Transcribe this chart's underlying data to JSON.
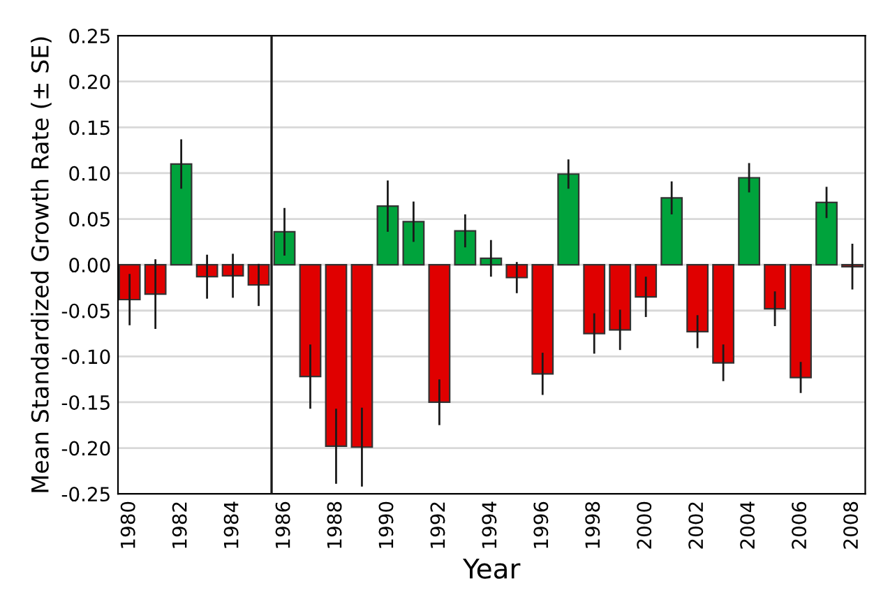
{
  "chart_data": {
    "type": "bar",
    "xlabel": "Year",
    "ylabel": "Mean Standardized Growth Rate (± SE)",
    "x": [
      1980,
      1981,
      1982,
      1983,
      1984,
      1985,
      1986,
      1987,
      1988,
      1989,
      1990,
      1991,
      1992,
      1993,
      1994,
      1995,
      1996,
      1997,
      1998,
      1999,
      2000,
      2001,
      2002,
      2003,
      2004,
      2005,
      2006,
      2007,
      2008
    ],
    "values": [
      -0.038,
      -0.032,
      0.11,
      -0.013,
      -0.012,
      -0.022,
      0.036,
      -0.122,
      -0.198,
      -0.199,
      0.064,
      0.047,
      -0.15,
      0.037,
      0.007,
      -0.014,
      -0.119,
      0.099,
      -0.075,
      -0.071,
      -0.035,
      0.073,
      -0.073,
      -0.107,
      0.095,
      -0.048,
      -0.123,
      0.068,
      -0.002
    ],
    "errors": [
      0.028,
      0.038,
      0.027,
      0.024,
      0.024,
      0.023,
      0.026,
      0.035,
      0.041,
      0.043,
      0.028,
      0.022,
      0.025,
      0.018,
      0.02,
      0.017,
      0.023,
      0.016,
      0.022,
      0.022,
      0.022,
      0.018,
      0.018,
      0.02,
      0.016,
      0.019,
      0.017,
      0.017,
      0.025
    ],
    "colors": [
      "#e00000",
      "#e00000",
      "#00a33c",
      "#e00000",
      "#e00000",
      "#e00000",
      "#00a33c",
      "#e00000",
      "#e00000",
      "#e00000",
      "#00a33c",
      "#00a33c",
      "#e00000",
      "#00a33c",
      "#00a33c",
      "#e00000",
      "#e00000",
      "#00a33c",
      "#e00000",
      "#e00000",
      "#e00000",
      "#00a33c",
      "#e00000",
      "#e00000",
      "#00a33c",
      "#e00000",
      "#e00000",
      "#00a33c",
      "#e00000"
    ],
    "xlim": [
      1979.55,
      2008.5
    ],
    "xticks": [
      1980,
      1982,
      1984,
      1986,
      1988,
      1990,
      1992,
      1994,
      1996,
      1998,
      2000,
      2002,
      2004,
      2006,
      2008
    ],
    "ylim": [
      -0.25,
      0.25
    ],
    "yticks": [
      {
        "value": -0.25,
        "label": "-0.25"
      },
      {
        "value": -0.2,
        "label": "-0.20"
      },
      {
        "value": -0.15,
        "label": "-0.15"
      },
      {
        "value": -0.1,
        "label": "-0.10"
      },
      {
        "value": -0.05,
        "label": "-0.05"
      },
      {
        "value": 0,
        "label": "0.00"
      },
      {
        "value": 0.05,
        "label": "0.05"
      },
      {
        "value": 0.1,
        "label": "0.10"
      },
      {
        "value": 0.15,
        "label": "0.15"
      },
      {
        "value": 0.2,
        "label": "0.20"
      },
      {
        "value": 0.25,
        "label": "0.25"
      }
    ],
    "ref_lines": [
      {
        "axis": "x",
        "value": 1985.5,
        "color": "#1a1a1a"
      }
    ],
    "grid": "y"
  }
}
